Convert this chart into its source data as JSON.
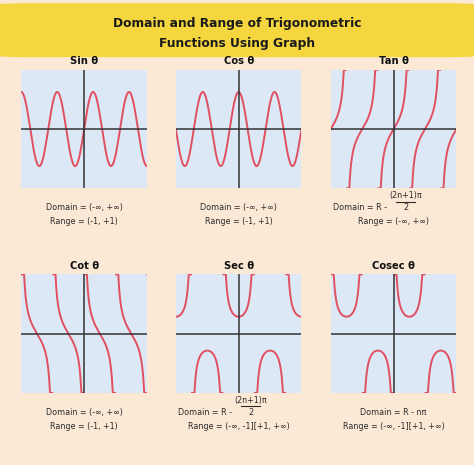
{
  "title_line1": "Domain and Range of Trigonometric",
  "title_line2": "Functions Using Graph",
  "bg_color": "#fce9d5",
  "title_box_color": "#f5d63f",
  "title_color": "#1a1a1a",
  "curve_color": "#e05060",
  "axis_color": "#333333",
  "grid_color": "#c8d8ea",
  "plot_bg": "#dce8f5",
  "text_color": "#2a2a2a",
  "functions": [
    "Sin θ",
    "Cos θ",
    "Tan θ",
    "Cot θ",
    "Sec θ",
    "Cosec θ"
  ],
  "range_texts": [
    "Range = (-1, +1)",
    "Range = (-1, +1)",
    "Range = (-∞, +∞)",
    "Range = (-1, +1)",
    "Range = (-∞, -1][+1, +∞)",
    "Range = (-∞, -1][+1, +∞)"
  ],
  "simple_domain": "Domain = (-∞, +∞)",
  "special_domain_prefix": "Domain = R - ",
  "special_domain_num": "(2n+1)π",
  "special_domain_den": "2",
  "cosec_domain": "Domain = R - nπ"
}
